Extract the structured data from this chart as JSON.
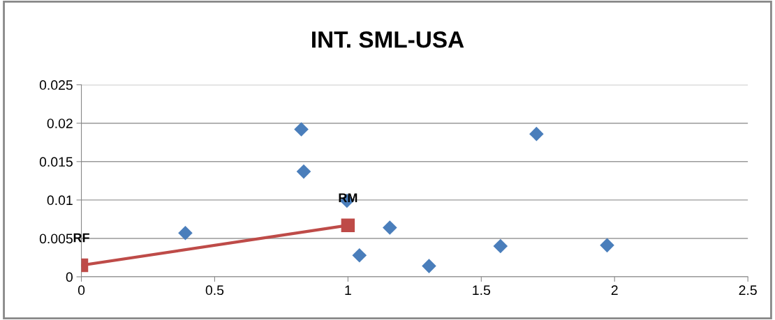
{
  "chart_data": {
    "type": "scatter",
    "title": "INT. SML-USA",
    "series": [
      {
        "marker": "diamond",
        "color": "#4a7ebb",
        "x": [
          0.39,
          0.825,
          0.834,
          0.996,
          1.043,
          1.157,
          1.304,
          1.572,
          1.707,
          1.972
        ],
        "values": [
          0.0057,
          0.0192,
          0.0137,
          0.0099,
          0.0028,
          0.0064,
          0.0014,
          0.004,
          0.0186,
          0.0041
        ]
      },
      {
        "type": "line",
        "marker": "square",
        "line_style": "solid",
        "color": "#be4b48",
        "x": [
          0,
          1
        ],
        "values": [
          0.0015,
          0.0067
        ]
      }
    ],
    "annotations": [
      {
        "text": "RF",
        "x": 0,
        "y": 0.0015
      },
      {
        "text": "RM",
        "x": 1,
        "y": 0.0067
      }
    ],
    "xlim": [
      0,
      2.5
    ],
    "xticks": [
      0,
      0.5,
      1,
      1.5,
      2,
      2.5
    ],
    "ylim": [
      0,
      0.025
    ],
    "yticks": [
      0,
      0.005,
      0.01,
      0.015,
      0.02,
      0.025
    ],
    "grid": "y",
    "legend": false
  }
}
